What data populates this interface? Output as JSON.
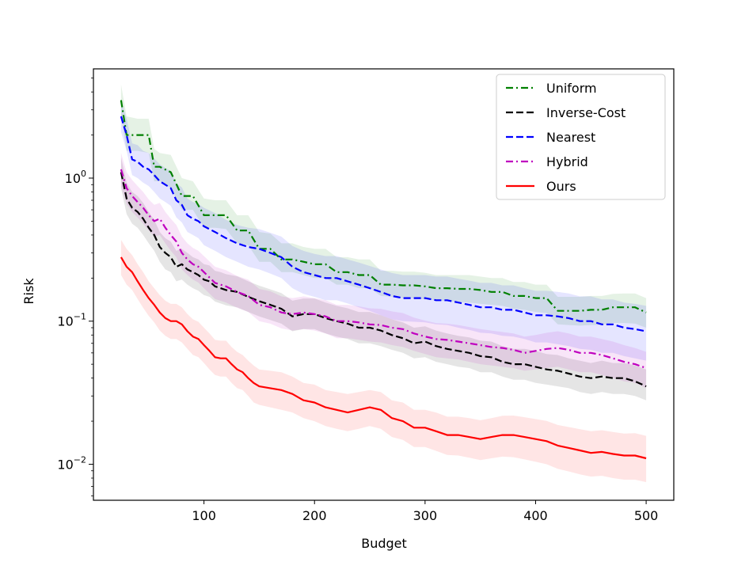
{
  "chart_data": {
    "type": "line",
    "title": "",
    "xlabel": "Budget",
    "ylabel": "Risk",
    "xlim": [
      0,
      525
    ],
    "ylim": [
      0.0056,
      5.8
    ],
    "yscale": "log",
    "xticks": [
      100,
      200,
      300,
      400,
      500
    ],
    "xtick_labels": [
      "100",
      "200",
      "300",
      "400",
      "500"
    ],
    "yticks": [
      {
        "value": 1,
        "base": "10",
        "exp": "0"
      },
      {
        "value": 0.1,
        "base": "10",
        "exp": "−1"
      },
      {
        "value": 0.01,
        "base": "10",
        "exp": "−2"
      }
    ],
    "grid": false,
    "legend_position": "top-right",
    "series": [
      {
        "name": "Uniform",
        "color": "#008000",
        "dash": "dashdot",
        "x": [
          25,
          30,
          40,
          50,
          55,
          60,
          70,
          80,
          90,
          100,
          110,
          120,
          130,
          140,
          150,
          160,
          170,
          180,
          190,
          200,
          210,
          220,
          230,
          240,
          250,
          260,
          270,
          280,
          290,
          300,
          310,
          320,
          330,
          340,
          350,
          360,
          370,
          380,
          390,
          400,
          410,
          420,
          430,
          440,
          450,
          460,
          470,
          480,
          490,
          500
        ],
        "y": [
          3.5,
          2.0,
          2.0,
          2.0,
          1.2,
          1.2,
          1.1,
          0.75,
          0.75,
          0.55,
          0.55,
          0.55,
          0.43,
          0.43,
          0.32,
          0.32,
          0.27,
          0.27,
          0.26,
          0.25,
          0.25,
          0.22,
          0.22,
          0.21,
          0.21,
          0.18,
          0.18,
          0.178,
          0.178,
          0.175,
          0.17,
          0.17,
          0.168,
          0.168,
          0.165,
          0.16,
          0.16,
          0.15,
          0.15,
          0.145,
          0.145,
          0.118,
          0.118,
          0.118,
          0.12,
          0.12,
          0.125,
          0.125,
          0.125,
          0.115
        ],
        "band_lo": [
          2.7,
          1.55,
          1.55,
          1.5,
          0.95,
          0.95,
          0.85,
          0.6,
          0.6,
          0.45,
          0.45,
          0.44,
          0.35,
          0.34,
          0.26,
          0.26,
          0.22,
          0.22,
          0.21,
          0.2,
          0.2,
          0.18,
          0.18,
          0.17,
          0.17,
          0.15,
          0.148,
          0.145,
          0.145,
          0.142,
          0.14,
          0.138,
          0.136,
          0.135,
          0.132,
          0.13,
          0.128,
          0.122,
          0.12,
          0.116,
          0.114,
          0.095,
          0.094,
          0.093,
          0.094,
          0.094,
          0.097,
          0.097,
          0.096,
          0.09
        ],
        "band_hi": [
          4.5,
          2.7,
          2.6,
          2.6,
          1.6,
          1.5,
          1.45,
          1.0,
          0.95,
          0.72,
          0.7,
          0.7,
          0.55,
          0.55,
          0.42,
          0.41,
          0.35,
          0.35,
          0.33,
          0.32,
          0.32,
          0.28,
          0.28,
          0.27,
          0.27,
          0.225,
          0.225,
          0.222,
          0.222,
          0.218,
          0.21,
          0.21,
          0.21,
          0.21,
          0.205,
          0.2,
          0.2,
          0.188,
          0.188,
          0.18,
          0.18,
          0.148,
          0.148,
          0.148,
          0.15,
          0.15,
          0.155,
          0.156,
          0.156,
          0.145
        ]
      },
      {
        "name": "Inverse-Cost",
        "color": "#000000",
        "dash": "dashed",
        "x": [
          25,
          30,
          35,
          40,
          45,
          50,
          55,
          60,
          65,
          70,
          75,
          80,
          85,
          90,
          95,
          100,
          105,
          110,
          115,
          120,
          130,
          140,
          150,
          160,
          170,
          180,
          190,
          200,
          210,
          220,
          230,
          240,
          250,
          260,
          270,
          280,
          290,
          300,
          310,
          320,
          330,
          340,
          350,
          360,
          370,
          380,
          390,
          400,
          410,
          420,
          430,
          440,
          450,
          460,
          470,
          480,
          490,
          500
        ],
        "y": [
          1.1,
          0.72,
          0.62,
          0.58,
          0.52,
          0.45,
          0.4,
          0.33,
          0.3,
          0.28,
          0.24,
          0.25,
          0.23,
          0.22,
          0.21,
          0.195,
          0.19,
          0.175,
          0.17,
          0.165,
          0.16,
          0.148,
          0.138,
          0.13,
          0.122,
          0.108,
          0.112,
          0.112,
          0.105,
          0.1,
          0.096,
          0.09,
          0.09,
          0.086,
          0.08,
          0.076,
          0.07,
          0.072,
          0.067,
          0.064,
          0.062,
          0.06,
          0.057,
          0.056,
          0.052,
          0.05,
          0.05,
          0.048,
          0.046,
          0.045,
          0.043,
          0.041,
          0.04,
          0.041,
          0.04,
          0.04,
          0.038,
          0.035
        ],
        "band_lo": [
          0.85,
          0.56,
          0.48,
          0.45,
          0.4,
          0.35,
          0.31,
          0.26,
          0.23,
          0.22,
          0.19,
          0.195,
          0.18,
          0.17,
          0.163,
          0.152,
          0.148,
          0.137,
          0.133,
          0.129,
          0.125,
          0.116,
          0.108,
          0.102,
          0.096,
          0.085,
          0.088,
          0.088,
          0.082,
          0.078,
          0.075,
          0.07,
          0.07,
          0.067,
          0.063,
          0.06,
          0.055,
          0.056,
          0.052,
          0.05,
          0.048,
          0.047,
          0.044,
          0.044,
          0.041,
          0.039,
          0.039,
          0.037,
          0.036,
          0.035,
          0.034,
          0.032,
          0.031,
          0.032,
          0.031,
          0.031,
          0.03,
          0.028
        ],
        "band_hi": [
          1.4,
          0.93,
          0.8,
          0.75,
          0.67,
          0.58,
          0.51,
          0.42,
          0.38,
          0.36,
          0.31,
          0.32,
          0.3,
          0.28,
          0.27,
          0.25,
          0.245,
          0.225,
          0.22,
          0.213,
          0.206,
          0.19,
          0.177,
          0.167,
          0.157,
          0.139,
          0.144,
          0.144,
          0.135,
          0.128,
          0.123,
          0.116,
          0.116,
          0.11,
          0.103,
          0.098,
          0.09,
          0.092,
          0.086,
          0.082,
          0.079,
          0.077,
          0.073,
          0.072,
          0.067,
          0.064,
          0.064,
          0.062,
          0.059,
          0.058,
          0.055,
          0.053,
          0.051,
          0.053,
          0.051,
          0.051,
          0.049,
          0.046
        ]
      },
      {
        "name": "Nearest",
        "color": "#0000ff",
        "dash": "dashed",
        "x": [
          25,
          30,
          35,
          40,
          45,
          50,
          55,
          60,
          65,
          70,
          75,
          80,
          85,
          90,
          95,
          100,
          110,
          120,
          130,
          140,
          150,
          160,
          170,
          180,
          190,
          200,
          210,
          220,
          230,
          240,
          250,
          260,
          270,
          280,
          290,
          300,
          310,
          320,
          330,
          340,
          350,
          360,
          370,
          380,
          390,
          400,
          410,
          420,
          430,
          440,
          450,
          460,
          470,
          480,
          490,
          500
        ],
        "y": [
          2.7,
          2.0,
          1.35,
          1.3,
          1.2,
          1.15,
          1.05,
          0.95,
          0.9,
          0.85,
          0.7,
          0.65,
          0.55,
          0.52,
          0.5,
          0.46,
          0.42,
          0.38,
          0.35,
          0.33,
          0.32,
          0.3,
          0.28,
          0.24,
          0.22,
          0.21,
          0.2,
          0.2,
          0.19,
          0.18,
          0.17,
          0.16,
          0.15,
          0.145,
          0.145,
          0.145,
          0.14,
          0.14,
          0.135,
          0.13,
          0.125,
          0.125,
          0.12,
          0.12,
          0.115,
          0.11,
          0.11,
          0.108,
          0.105,
          0.1,
          0.1,
          0.095,
          0.095,
          0.09,
          0.088,
          0.085
        ],
        "band_lo": [
          2.1,
          1.55,
          1.05,
          1.0,
          0.93,
          0.88,
          0.8,
          0.72,
          0.68,
          0.64,
          0.53,
          0.49,
          0.42,
          0.4,
          0.38,
          0.34,
          0.31,
          0.28,
          0.26,
          0.24,
          0.23,
          0.215,
          0.2,
          0.17,
          0.155,
          0.148,
          0.14,
          0.14,
          0.133,
          0.125,
          0.118,
          0.11,
          0.103,
          0.1,
          0.099,
          0.098,
          0.095,
          0.094,
          0.09,
          0.087,
          0.083,
          0.082,
          0.079,
          0.078,
          0.075,
          0.071,
          0.071,
          0.069,
          0.067,
          0.064,
          0.063,
          0.06,
          0.06,
          0.057,
          0.055,
          0.053
        ],
        "band_hi": [
          3.5,
          2.6,
          1.75,
          1.7,
          1.55,
          1.5,
          1.37,
          1.25,
          1.18,
          1.12,
          0.92,
          0.86,
          0.72,
          0.68,
          0.66,
          0.62,
          0.57,
          0.51,
          0.47,
          0.45,
          0.44,
          0.415,
          0.39,
          0.335,
          0.31,
          0.295,
          0.285,
          0.285,
          0.27,
          0.257,
          0.243,
          0.23,
          0.217,
          0.21,
          0.21,
          0.21,
          0.205,
          0.205,
          0.198,
          0.192,
          0.185,
          0.185,
          0.178,
          0.178,
          0.17,
          0.163,
          0.163,
          0.16,
          0.156,
          0.149,
          0.149,
          0.142,
          0.142,
          0.135,
          0.132,
          0.128
        ]
      },
      {
        "name": "Hybrid",
        "color": "#bf00bf",
        "dash": "dashdot",
        "x": [
          25,
          30,
          35,
          40,
          45,
          50,
          55,
          60,
          65,
          70,
          75,
          80,
          85,
          90,
          95,
          100,
          110,
          120,
          130,
          140,
          150,
          160,
          170,
          180,
          190,
          200,
          210,
          220,
          230,
          240,
          250,
          260,
          270,
          280,
          290,
          300,
          310,
          320,
          330,
          340,
          350,
          360,
          370,
          380,
          390,
          400,
          410,
          420,
          430,
          440,
          450,
          460,
          470,
          480,
          490,
          500
        ],
        "y": [
          1.15,
          0.85,
          0.75,
          0.68,
          0.62,
          0.55,
          0.5,
          0.52,
          0.45,
          0.4,
          0.36,
          0.3,
          0.27,
          0.25,
          0.24,
          0.22,
          0.185,
          0.175,
          0.16,
          0.15,
          0.13,
          0.125,
          0.115,
          0.112,
          0.115,
          0.112,
          0.108,
          0.1,
          0.1,
          0.098,
          0.095,
          0.094,
          0.09,
          0.088,
          0.082,
          0.078,
          0.075,
          0.074,
          0.072,
          0.07,
          0.068,
          0.066,
          0.065,
          0.063,
          0.06,
          0.062,
          0.064,
          0.065,
          0.063,
          0.06,
          0.06,
          0.058,
          0.055,
          0.052,
          0.05,
          0.047
        ],
        "band_lo": [
          0.88,
          0.66,
          0.58,
          0.53,
          0.48,
          0.43,
          0.39,
          0.4,
          0.35,
          0.31,
          0.28,
          0.23,
          0.21,
          0.195,
          0.186,
          0.17,
          0.143,
          0.135,
          0.124,
          0.116,
          0.1,
          0.096,
          0.089,
          0.086,
          0.088,
          0.086,
          0.082,
          0.076,
          0.076,
          0.074,
          0.072,
          0.071,
          0.068,
          0.066,
          0.062,
          0.059,
          0.056,
          0.055,
          0.054,
          0.052,
          0.05,
          0.049,
          0.048,
          0.047,
          0.045,
          0.046,
          0.047,
          0.048,
          0.046,
          0.044,
          0.044,
          0.042,
          0.04,
          0.038,
          0.037,
          0.034
        ],
        "band_hi": [
          1.5,
          1.1,
          0.97,
          0.88,
          0.8,
          0.71,
          0.65,
          0.67,
          0.58,
          0.52,
          0.47,
          0.39,
          0.35,
          0.325,
          0.31,
          0.285,
          0.24,
          0.227,
          0.207,
          0.195,
          0.168,
          0.162,
          0.149,
          0.145,
          0.149,
          0.145,
          0.14,
          0.13,
          0.13,
          0.127,
          0.123,
          0.122,
          0.117,
          0.114,
          0.106,
          0.101,
          0.097,
          0.096,
          0.094,
          0.091,
          0.088,
          0.086,
          0.084,
          0.082,
          0.078,
          0.08,
          0.083,
          0.085,
          0.082,
          0.078,
          0.078,
          0.075,
          0.072,
          0.068,
          0.065,
          0.061
        ]
      },
      {
        "name": "Ours",
        "color": "#ff0000",
        "dash": "solid",
        "x": [
          25,
          30,
          35,
          40,
          45,
          50,
          55,
          60,
          65,
          70,
          75,
          80,
          85,
          90,
          95,
          100,
          105,
          110,
          115,
          120,
          125,
          130,
          135,
          140,
          145,
          150,
          160,
          170,
          180,
          190,
          200,
          210,
          220,
          230,
          240,
          250,
          260,
          270,
          280,
          290,
          300,
          310,
          320,
          330,
          340,
          350,
          360,
          370,
          380,
          390,
          400,
          410,
          420,
          430,
          440,
          450,
          460,
          470,
          480,
          490,
          500
        ],
        "y": [
          0.28,
          0.24,
          0.22,
          0.19,
          0.165,
          0.145,
          0.13,
          0.115,
          0.105,
          0.1,
          0.1,
          0.095,
          0.085,
          0.078,
          0.075,
          0.068,
          0.062,
          0.056,
          0.055,
          0.055,
          0.05,
          0.046,
          0.044,
          0.04,
          0.037,
          0.035,
          0.034,
          0.033,
          0.031,
          0.028,
          0.027,
          0.025,
          0.024,
          0.023,
          0.024,
          0.025,
          0.024,
          0.021,
          0.02,
          0.018,
          0.018,
          0.017,
          0.016,
          0.016,
          0.0155,
          0.015,
          0.0155,
          0.016,
          0.016,
          0.0155,
          0.015,
          0.0145,
          0.0135,
          0.013,
          0.0125,
          0.012,
          0.0122,
          0.0118,
          0.0115,
          0.0115,
          0.011
        ],
        "band_lo": [
          0.21,
          0.18,
          0.165,
          0.143,
          0.124,
          0.109,
          0.098,
          0.086,
          0.079,
          0.075,
          0.075,
          0.071,
          0.064,
          0.058,
          0.056,
          0.051,
          0.046,
          0.042,
          0.041,
          0.041,
          0.037,
          0.034,
          0.033,
          0.03,
          0.027,
          0.026,
          0.025,
          0.024,
          0.023,
          0.021,
          0.02,
          0.0185,
          0.0177,
          0.017,
          0.0177,
          0.0185,
          0.0177,
          0.0155,
          0.0148,
          0.0132,
          0.0132,
          0.0124,
          0.0116,
          0.0115,
          0.0111,
          0.0107,
          0.011,
          0.0113,
          0.0112,
          0.0108,
          0.0104,
          0.01,
          0.0093,
          0.0089,
          0.0085,
          0.0082,
          0.0083,
          0.008,
          0.0078,
          0.0078,
          0.0075
        ],
        "band_hi": [
          0.37,
          0.32,
          0.29,
          0.25,
          0.22,
          0.19,
          0.17,
          0.152,
          0.139,
          0.132,
          0.132,
          0.125,
          0.112,
          0.103,
          0.099,
          0.09,
          0.082,
          0.074,
          0.073,
          0.073,
          0.066,
          0.061,
          0.058,
          0.053,
          0.049,
          0.046,
          0.045,
          0.044,
          0.041,
          0.037,
          0.036,
          0.033,
          0.032,
          0.031,
          0.032,
          0.033,
          0.032,
          0.028,
          0.027,
          0.024,
          0.024,
          0.023,
          0.0215,
          0.0215,
          0.021,
          0.0203,
          0.021,
          0.0218,
          0.0219,
          0.0213,
          0.0207,
          0.0201,
          0.0188,
          0.0182,
          0.0176,
          0.017,
          0.0173,
          0.0168,
          0.0164,
          0.0165,
          0.0158
        ]
      }
    ]
  }
}
